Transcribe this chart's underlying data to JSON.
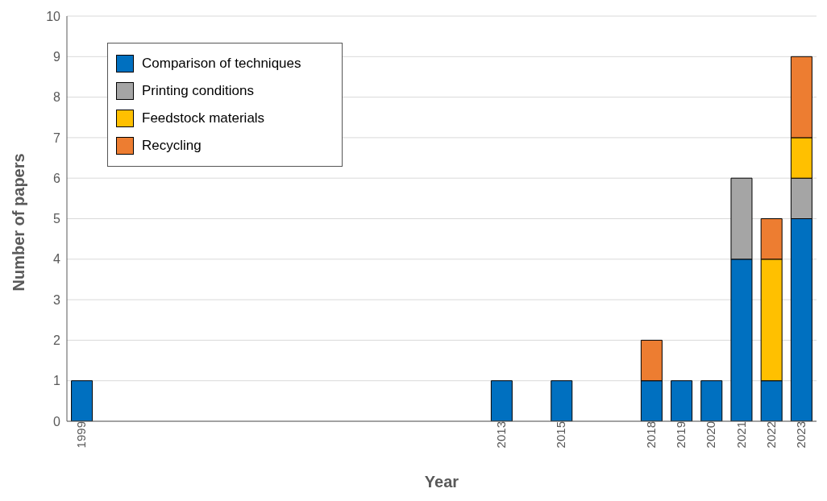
{
  "chart_data": {
    "type": "bar",
    "stacked": true,
    "xlabel": "Year",
    "ylabel": "Number of papers",
    "categories": [
      "1999",
      null,
      null,
      null,
      null,
      null,
      null,
      null,
      null,
      null,
      null,
      null,
      null,
      null,
      "2013",
      null,
      "2015",
      null,
      null,
      "2018",
      "2019",
      "2020",
      "2021",
      "2022",
      "2023"
    ],
    "series": [
      {
        "name": "Comparison of techniques",
        "color": "#0070c0",
        "values": [
          1,
          null,
          null,
          null,
          null,
          null,
          null,
          null,
          null,
          null,
          null,
          null,
          null,
          null,
          1,
          null,
          1,
          null,
          null,
          1,
          1,
          1,
          4,
          1,
          5
        ]
      },
      {
        "name": "Printing conditions",
        "color": "#a5a5a5",
        "values": [
          null,
          null,
          null,
          null,
          null,
          null,
          null,
          null,
          null,
          null,
          null,
          null,
          null,
          null,
          null,
          null,
          null,
          null,
          null,
          null,
          null,
          null,
          2,
          null,
          1
        ]
      },
      {
        "name": "Feedstock materials",
        "color": "#ffc000",
        "values": [
          null,
          null,
          null,
          null,
          null,
          null,
          null,
          null,
          null,
          null,
          null,
          null,
          null,
          null,
          null,
          null,
          null,
          null,
          null,
          null,
          null,
          null,
          null,
          3,
          1
        ]
      },
      {
        "name": "Recycling",
        "color": "#ed7d31",
        "values": [
          null,
          null,
          null,
          null,
          null,
          null,
          null,
          null,
          null,
          null,
          null,
          null,
          null,
          null,
          null,
          null,
          null,
          null,
          null,
          1,
          null,
          null,
          null,
          1,
          2
        ]
      }
    ],
    "ylim": [
      0,
      10
    ],
    "yticks": [
      0,
      1,
      2,
      3,
      4,
      5,
      6,
      7,
      8,
      9,
      10
    ],
    "grid": "y",
    "legend": "top left"
  }
}
